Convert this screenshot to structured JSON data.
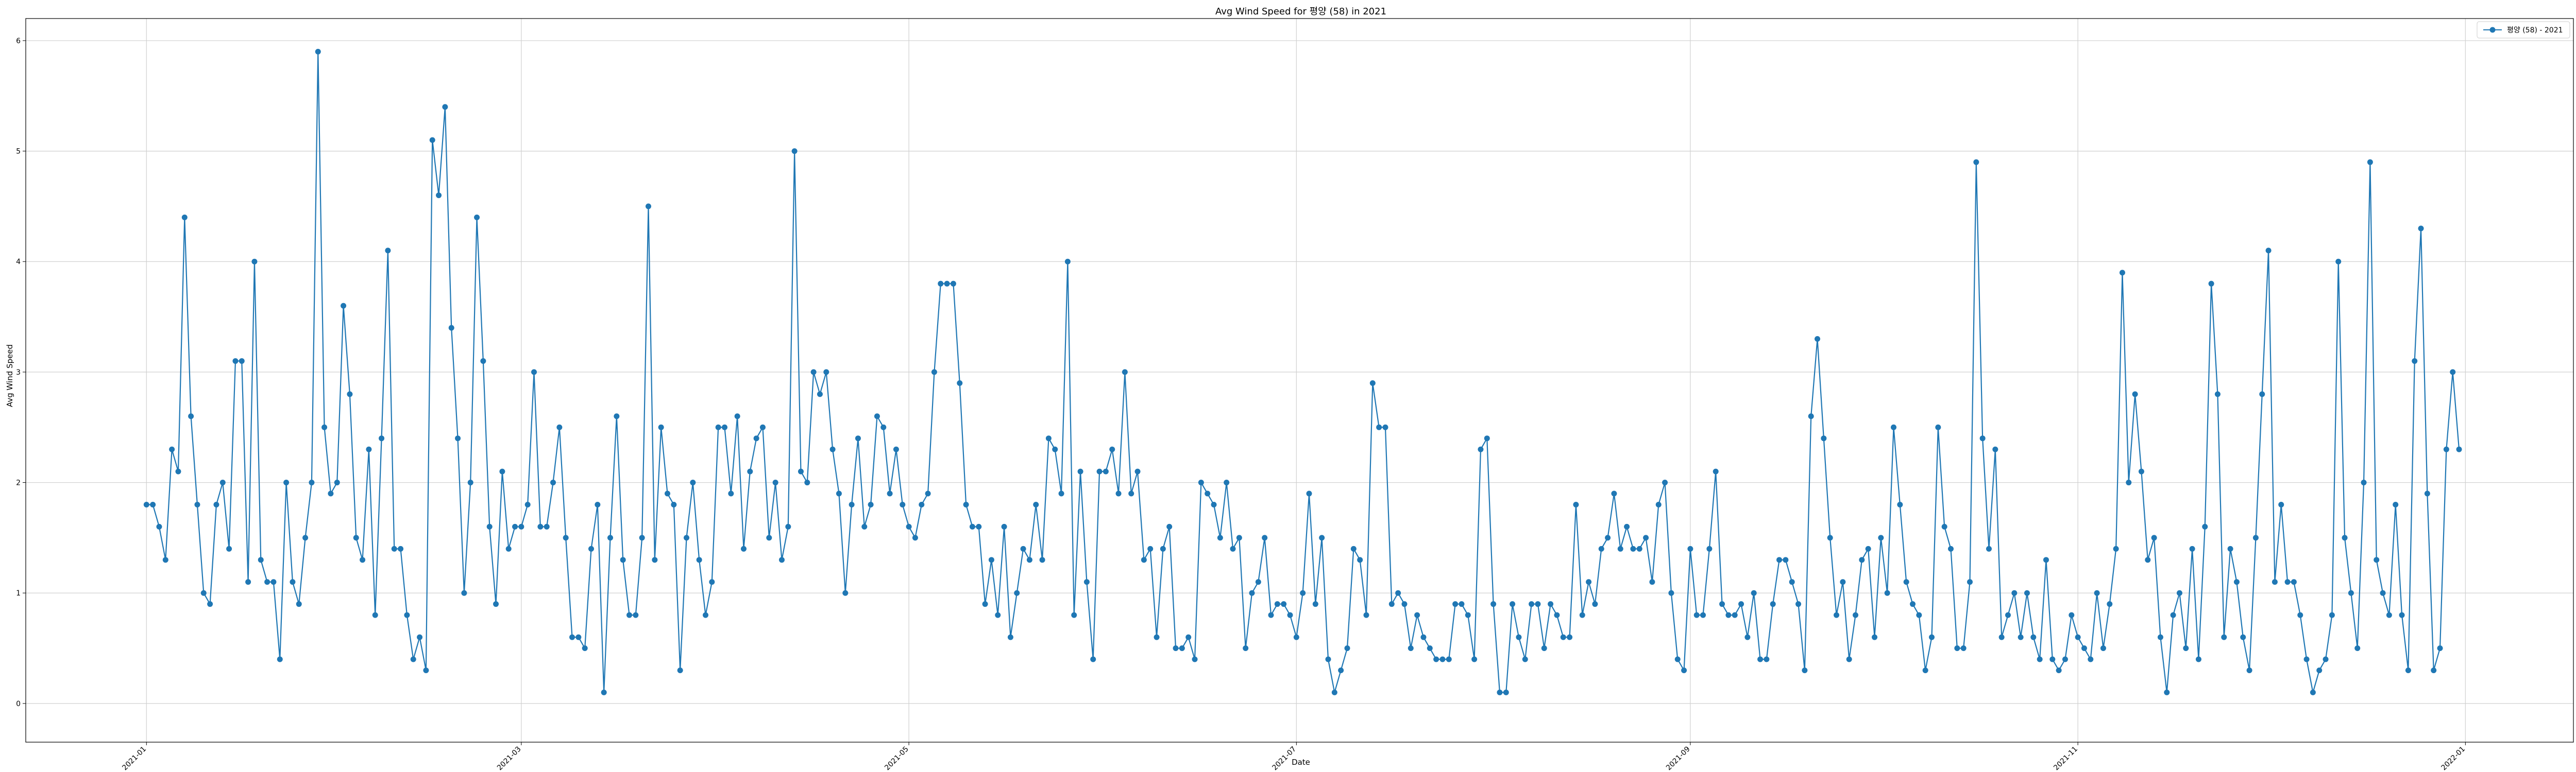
{
  "chart_data": {
    "type": "line",
    "title": "Avg Wind Speed for 평양 (58) in 2021",
    "xlabel": "Date",
    "ylabel": "Avg Wind Speed",
    "x_start": "2021-01-01",
    "x_end": "2021-12-31",
    "xlim": [
      "2020-12-13",
      "2022-01-18"
    ],
    "ylim": [
      -0.35,
      6.2
    ],
    "x_ticks": [
      "2021-01",
      "2021-03",
      "2021-05",
      "2021-07",
      "2021-09",
      "2021-11",
      "2022-01"
    ],
    "y_ticks": [
      0,
      1,
      2,
      3,
      4,
      5,
      6
    ],
    "grid": true,
    "legend_position": "top-right",
    "series": [
      {
        "name": "평양 (58) - 2021",
        "color": "#1f77b4",
        "values": [
          1.8,
          1.8,
          1.6,
          1.3,
          2.3,
          2.1,
          4.4,
          2.6,
          1.8,
          1.0,
          0.9,
          1.8,
          2.0,
          1.4,
          3.1,
          3.1,
          1.1,
          4.0,
          1.3,
          1.1,
          1.1,
          0.4,
          2.0,
          1.1,
          0.9,
          1.5,
          2.0,
          5.9,
          2.5,
          1.9,
          2.0,
          3.6,
          2.8,
          1.5,
          1.3,
          2.3,
          0.8,
          2.4,
          4.1,
          1.4,
          1.4,
          0.8,
          0.4,
          0.6,
          0.3,
          5.1,
          4.6,
          5.4,
          3.4,
          2.4,
          1.0,
          2.0,
          4.4,
          3.1,
          1.6,
          0.9,
          2.1,
          1.4,
          1.6,
          1.6,
          1.8,
          3.0,
          1.6,
          1.6,
          2.0,
          2.5,
          1.5,
          0.6,
          0.6,
          0.5,
          1.4,
          1.8,
          0.1,
          1.5,
          2.6,
          1.3,
          0.8,
          0.8,
          1.5,
          4.5,
          1.3,
          2.5,
          1.9,
          1.8,
          0.3,
          1.5,
          2.0,
          1.3,
          0.8,
          1.1,
          2.5,
          2.5,
          1.9,
          2.6,
          1.4,
          2.1,
          2.4,
          2.5,
          1.5,
          2.0,
          1.3,
          1.6,
          5.0,
          2.1,
          2.0,
          3.0,
          2.8,
          3.0,
          2.3,
          1.9,
          1.0,
          1.8,
          2.4,
          1.6,
          1.8,
          2.6,
          2.5,
          1.9,
          2.3,
          1.8,
          1.6,
          1.5,
          1.8,
          1.9,
          3.0,
          3.8,
          3.8,
          3.8,
          2.9,
          1.8,
          1.6,
          1.6,
          0.9,
          1.3,
          0.8,
          1.6,
          0.6,
          1.0,
          1.4,
          1.3,
          1.8,
          1.3,
          2.4,
          2.3,
          1.9,
          4.0,
          0.8,
          2.1,
          1.1,
          0.4,
          2.1,
          2.1,
          2.3,
          1.9,
          3.0,
          1.9,
          2.1,
          1.3,
          1.4,
          0.6,
          1.4,
          1.6,
          0.5,
          0.5,
          0.6,
          0.4,
          2.0,
          1.9,
          1.8,
          1.5,
          2.0,
          1.4,
          1.5,
          0.5,
          1.0,
          1.1,
          1.5,
          0.8,
          0.9,
          0.9,
          0.8,
          0.6,
          1.0,
          1.9,
          0.9,
          1.5,
          0.4,
          0.1,
          0.3,
          0.5,
          1.4,
          1.3,
          0.8,
          2.9,
          2.5,
          2.5,
          0.9,
          1.0,
          0.9,
          0.5,
          0.8,
          0.6,
          0.5,
          0.4,
          0.4,
          0.4,
          0.9,
          0.9,
          0.8,
          0.4,
          2.3,
          2.4,
          0.9,
          0.1,
          0.1,
          0.9,
          0.6,
          0.4,
          0.9,
          0.9,
          0.5,
          0.9,
          0.8,
          0.6,
          0.6,
          1.8,
          0.8,
          1.1,
          0.9,
          1.4,
          1.5,
          1.9,
          1.4,
          1.6,
          1.4,
          1.4,
          1.5,
          1.1,
          1.8,
          2.0,
          1.0,
          0.4,
          0.3,
          1.4,
          0.8,
          0.8,
          1.4,
          2.1,
          0.9,
          0.8,
          0.8,
          0.9,
          0.6,
          1.0,
          0.4,
          0.4,
          0.9,
          1.3,
          1.3,
          1.1,
          0.9,
          0.3,
          2.6,
          3.3,
          2.4,
          1.5,
          0.8,
          1.1,
          0.4,
          0.8,
          1.3,
          1.4,
          0.6,
          1.5,
          1.0,
          2.5,
          1.8,
          1.1,
          0.9,
          0.8,
          0.3,
          0.6,
          2.5,
          1.6,
          1.4,
          0.5,
          0.5,
          1.1,
          4.9,
          2.4,
          1.4,
          2.3,
          0.6,
          0.8,
          1.0,
          0.6,
          1.0,
          0.6,
          0.4,
          1.3,
          0.4,
          0.3,
          0.4,
          0.8,
          0.6,
          0.5,
          0.4,
          1.0,
          0.5,
          0.9,
          1.4,
          3.9,
          2.0,
          2.8,
          2.1,
          1.3,
          1.5,
          0.6,
          0.1,
          0.8,
          1.0,
          0.5,
          1.4,
          0.4,
          1.6,
          3.8,
          2.8,
          0.6,
          1.4,
          1.1,
          0.6,
          0.3,
          1.5,
          2.8,
          4.1,
          1.1,
          1.8,
          1.1,
          1.1,
          0.8,
          0.4,
          0.1,
          0.3,
          0.4,
          0.8,
          4.0,
          1.5,
          1.0,
          0.5,
          2.0,
          4.9,
          1.3,
          1.0,
          0.8,
          1.8,
          0.8,
          0.3,
          3.1,
          4.3,
          1.9,
          0.3,
          0.5,
          2.3,
          3.0,
          2.3
        ]
      }
    ]
  }
}
